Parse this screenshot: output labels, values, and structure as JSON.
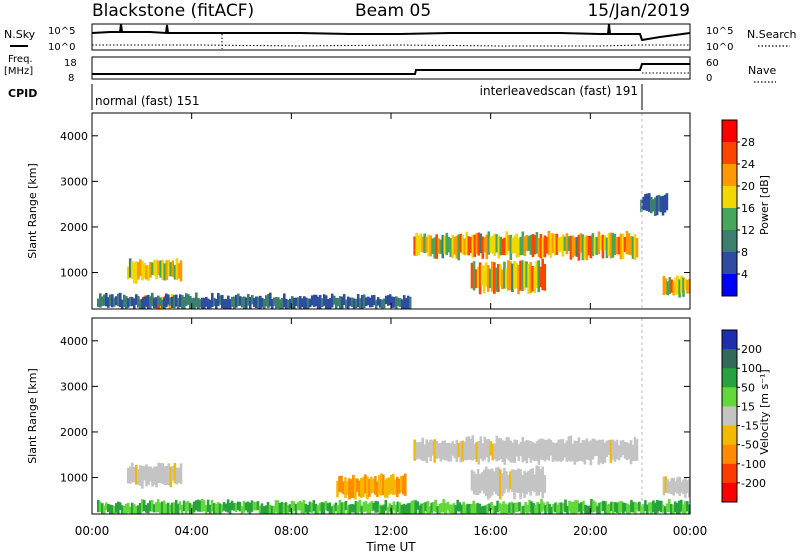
{
  "header": {
    "title": "Blackstone (fitACF)",
    "beam": "Beam 05",
    "date": "15/Jan/2019"
  },
  "strip_nsky": {
    "left_label": "N.Sky",
    "left_ticks": [
      "10^5",
      "10^0"
    ],
    "right_label": "N.Search",
    "right_ticks": [
      "10^5",
      "10^0"
    ]
  },
  "strip_freq": {
    "left_label_1": "Freq.",
    "left_label_2": "[MHz]",
    "left_ticks": [
      "18",
      "8"
    ],
    "right_label": "Nave",
    "right_ticks": [
      "60",
      "0"
    ]
  },
  "strip_cpid": {
    "label": "CPID",
    "mode1": "normal (fast) 151",
    "mode2": "interleavedscan (fast) 191"
  },
  "colors": {
    "power": [
      "#0000ff",
      "#2e4ca0",
      "#3d7f6e",
      "#46a75a",
      "#f0d800",
      "#ff9900",
      "#ff4400",
      "#ff0000"
    ],
    "velocity": [
      "#1d2fb0",
      "#2f6b58",
      "#28a23c",
      "#62d83a",
      "#c4c4c4",
      "#f5b800",
      "#ff8c00",
      "#ff3c00",
      "#ff0000"
    ]
  },
  "chart_data": [
    {
      "type": "heatmap",
      "panel": "power",
      "ylabel": "Slant Range [km]",
      "yticks": [
        "1000",
        "2000",
        "3000",
        "4000"
      ],
      "ylim": [
        200,
        4500
      ],
      "xlim": [
        "00:00",
        "24:00"
      ],
      "colorbar_label": "Power [dB]",
      "colorbar_ticks": [
        "4",
        "8",
        "12",
        "16",
        "20",
        "24",
        "28"
      ],
      "colorbar_range": [
        0,
        32
      ],
      "echo_regions": [
        {
          "t_start": 1.4,
          "t_end": 3.6,
          "range_center": 1050,
          "range_half_width": 230,
          "peak_db": 22
        },
        {
          "t_start": 2.0,
          "t_end": 3.4,
          "range_center": 330,
          "range_half_width": 130,
          "peak_db": 30
        },
        {
          "t_start": 12.9,
          "t_end": 21.9,
          "range_center": 1600,
          "range_half_width": 260,
          "peak_db": 26
        },
        {
          "t_start": 15.2,
          "t_end": 18.2,
          "range_center": 900,
          "range_half_width": 320,
          "peak_db": 26
        },
        {
          "t_start": 22.0,
          "t_end": 23.1,
          "range_center": 2500,
          "range_half_width": 200,
          "peak_db": 10
        },
        {
          "t_start": 22.9,
          "t_end": 24.0,
          "range_center": 700,
          "range_half_width": 200,
          "peak_db": 28
        },
        {
          "t_start": 0.2,
          "t_end": 12.8,
          "range_center": 350,
          "range_half_width": 150,
          "peak_db": 10
        }
      ]
    },
    {
      "type": "heatmap",
      "panel": "velocity",
      "ylabel": "Slant Range [km]",
      "yticks": [
        "1000",
        "2000",
        "3000",
        "4000"
      ],
      "ylim": [
        200,
        4500
      ],
      "xlim": [
        "00:00",
        "24:00"
      ],
      "xticks": [
        "00:00",
        "04:00",
        "08:00",
        "12:00",
        "16:00",
        "20:00",
        "00:00"
      ],
      "xlabel": "Time UT",
      "colorbar_label": "Velocity [m s⁻¹]",
      "colorbar_ticks": [
        "200",
        "100",
        "50",
        "15",
        "-15",
        "-50",
        "-100",
        "-200"
      ],
      "colorbar_range": [
        -250,
        250
      ],
      "echo_regions": [
        {
          "t_start": 1.4,
          "t_end": 3.6,
          "range_center": 1050,
          "range_half_width": 230,
          "velocity": 0
        },
        {
          "t_start": 12.9,
          "t_end": 21.9,
          "range_center": 1600,
          "range_half_width": 260,
          "velocity": 0
        },
        {
          "t_start": 15.2,
          "t_end": 18.2,
          "range_center": 900,
          "range_half_width": 320,
          "velocity": 0
        },
        {
          "t_start": 9.8,
          "t_end": 12.6,
          "range_center": 800,
          "range_half_width": 230,
          "velocity": -40
        },
        {
          "t_start": 0.2,
          "t_end": 24.0,
          "range_center": 330,
          "range_half_width": 140,
          "velocity": 30
        },
        {
          "t_start": 22.9,
          "t_end": 24.0,
          "range_center": 800,
          "range_half_width": 200,
          "velocity": 0
        }
      ]
    }
  ]
}
